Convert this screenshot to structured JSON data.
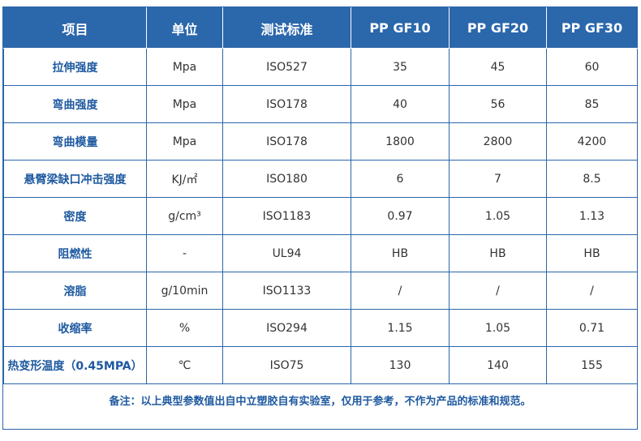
{
  "table": {
    "headers": [
      "项目",
      "单位",
      "测试标准",
      "PP GF10",
      "PP GF20",
      "PP GF30"
    ],
    "rows": [
      {
        "item": "拉伸强度",
        "unit": "Mpa",
        "standard": "ISO527",
        "gf10": "35",
        "gf20": "45",
        "gf30": "60"
      },
      {
        "item": "弯曲强度",
        "unit": "Mpa",
        "standard": "ISO178",
        "gf10": "40",
        "gf20": "56",
        "gf30": "85"
      },
      {
        "item": "弯曲模量",
        "unit": "Mpa",
        "standard": "ISO178",
        "gf10": "1800",
        "gf20": "2800",
        "gf30": "4200"
      },
      {
        "item": "悬臂梁缺口冲击强度",
        "unit": "KJ/㎡",
        "standard": "ISO180",
        "gf10": "6",
        "gf20": "7",
        "gf30": "8.5"
      },
      {
        "item": "密度",
        "unit": "g/cm³",
        "standard": "ISO1183",
        "gf10": "0.97",
        "gf20": "1.05",
        "gf30": "1.13"
      },
      {
        "item": "阻燃性",
        "unit": "-",
        "standard": "UL94",
        "gf10": "HB",
        "gf20": "HB",
        "gf30": "HB"
      },
      {
        "item": "溶脂",
        "unit": "g/10min",
        "standard": "ISO1133",
        "gf10": "/",
        "gf20": "/",
        "gf30": "/"
      },
      {
        "item": "收缩率",
        "unit": "%",
        "standard": "ISO294",
        "gf10": "1.15",
        "gf20": "1.05",
        "gf30": "0.71"
      },
      {
        "item": "热变形温度（0.45MPA）",
        "unit": "℃",
        "standard": "ISO75",
        "gf10": "130",
        "gf20": "140",
        "gf30": "155"
      }
    ]
  },
  "note": "备注：以上典型参数值出自中立塑胶自有实验室，仅用于参考，不作为产品的标准和规范。",
  "colors": {
    "header_bg": "#2b67ab",
    "border": "#2a66aa",
    "item_text": "#1f5aa0"
  }
}
